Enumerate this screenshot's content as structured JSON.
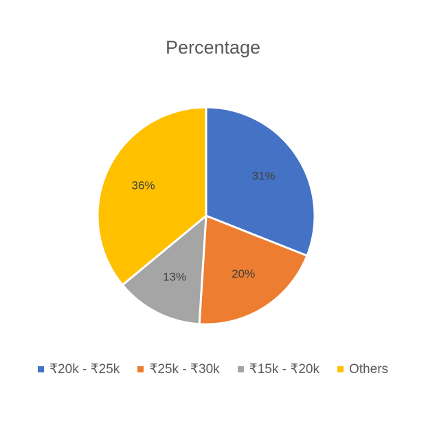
{
  "chart_data": {
    "type": "pie",
    "title": "Percentage",
    "categories": [
      "₹20k - ₹25k",
      "₹25k - ₹30k",
      "₹15k - ₹20k",
      "Others"
    ],
    "values": [
      31,
      20,
      13,
      36
    ],
    "data_labels": [
      "31%",
      "20%",
      "13%",
      "36%"
    ],
    "colors": [
      "#4472C4",
      "#ED7D31",
      "#A5A5A5",
      "#FFC000"
    ],
    "legend_position": "bottom"
  }
}
